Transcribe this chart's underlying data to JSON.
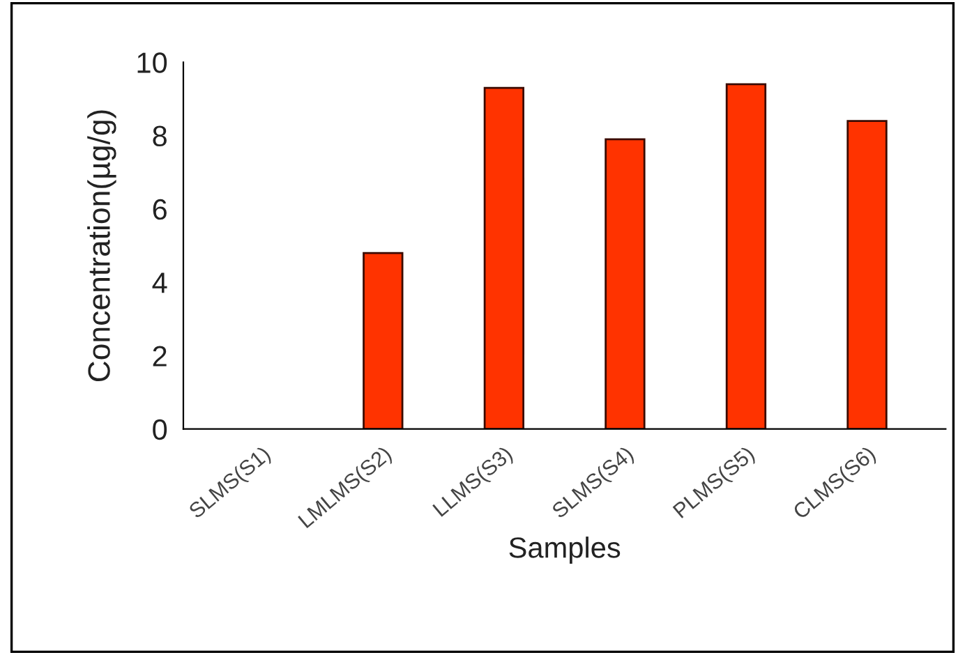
{
  "chart_data": {
    "type": "bar",
    "categories": [
      "SLMS(S1)",
      "LMLMS(S2)",
      "LLMS(S3)",
      "SLMS(S4)",
      "PLMS(S5)",
      "CLMS(S6)"
    ],
    "values": [
      0,
      4.8,
      9.3,
      7.9,
      9.4,
      8.4
    ],
    "color": "#ff3300",
    "xlabel": "Samples",
    "ylabel": "Concentration(µg/g)",
    "ylim": [
      0,
      10
    ],
    "yticks": [
      0,
      2,
      4,
      6,
      8,
      10
    ],
    "grid": false,
    "legend": false
  }
}
